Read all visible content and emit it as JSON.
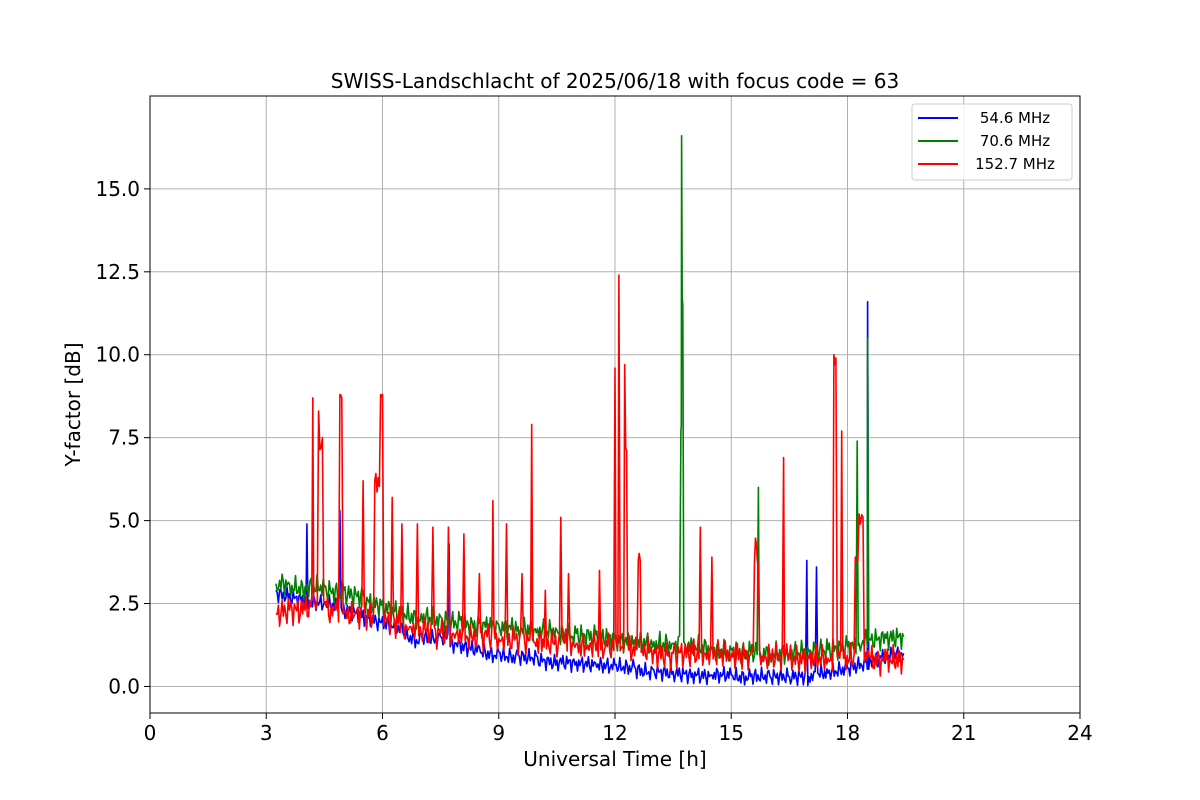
{
  "chart_data": {
    "type": "line",
    "title": "SWISS-Landschlacht of 2025/06/18 with focus code = 63",
    "xlabel": "Universal Time [h]",
    "ylabel": "Y-factor [dB]",
    "xlim": [
      0,
      24
    ],
    "ylim": [
      -0.8,
      17.8
    ],
    "xticks": [
      0,
      3,
      6,
      9,
      12,
      15,
      18,
      21,
      24
    ],
    "xtick_labels": [
      "0",
      "3",
      "6",
      "9",
      "12",
      "15",
      "18",
      "21",
      "24"
    ],
    "yticks": [
      0,
      2.5,
      5,
      7.5,
      10,
      12.5,
      15
    ],
    "ytick_labels": [
      "0.0",
      "2.5",
      "5.0",
      "7.5",
      "10.0",
      "12.5",
      "15.0"
    ],
    "grid": true,
    "legend_position": "top-right",
    "series": [
      {
        "name": "54.6 MHz",
        "color": "#0000ff",
        "x": [
          3.25,
          3.6,
          4.0,
          4.05,
          4.1,
          4.5,
          4.85,
          4.9,
          5.0,
          5.5,
          6.0,
          6.5,
          7.0,
          7.5,
          7.72,
          7.8,
          8.0,
          8.5,
          9.0,
          9.5,
          10.0,
          10.5,
          11.0,
          11.5,
          12.0,
          12.5,
          13.0,
          13.5,
          14.0,
          14.5,
          15.0,
          15.5,
          16.0,
          16.5,
          16.95,
          17.0,
          17.2,
          17.5,
          18.0,
          18.5,
          18.52,
          18.6,
          19.0,
          19.45
        ],
        "y": [
          2.9,
          2.8,
          2.7,
          4.9,
          2.6,
          2.55,
          2.5,
          5.3,
          2.45,
          2.3,
          2.1,
          1.9,
          1.6,
          1.5,
          4.3,
          1.4,
          1.3,
          1.2,
          1.05,
          0.95,
          0.9,
          0.8,
          0.75,
          0.7,
          0.65,
          0.6,
          0.5,
          0.45,
          0.4,
          0.35,
          0.35,
          0.3,
          0.3,
          0.3,
          3.8,
          0.3,
          3.6,
          0.4,
          0.55,
          0.7,
          11.6,
          0.8,
          0.9,
          1.0
        ]
      },
      {
        "name": "70.6 MHz",
        "color": "#008000",
        "x": [
          3.25,
          3.6,
          4.0,
          4.5,
          5.0,
          5.5,
          6.0,
          6.5,
          7.0,
          7.5,
          8.0,
          8.5,
          9.0,
          9.5,
          10.0,
          10.5,
          11.0,
          11.5,
          12.0,
          12.5,
          13.0,
          13.5,
          13.7,
          13.72,
          13.75,
          13.8,
          14.0,
          14.5,
          15.0,
          15.5,
          15.7,
          15.75,
          16.0,
          16.5,
          17.0,
          17.5,
          18.0,
          18.25,
          18.3,
          18.5,
          18.52,
          18.6,
          19.0,
          19.45
        ],
        "y": [
          3.1,
          3.1,
          3.0,
          3.0,
          2.9,
          2.8,
          2.6,
          2.4,
          2.2,
          2.1,
          2.0,
          1.9,
          1.85,
          1.8,
          1.75,
          1.7,
          1.6,
          1.55,
          1.5,
          1.4,
          1.35,
          1.3,
          7.7,
          16.6,
          11.5,
          1.3,
          1.25,
          1.2,
          1.1,
          1.05,
          6.0,
          1.0,
          1.0,
          1.0,
          1.05,
          1.1,
          1.2,
          7.4,
          1.3,
          1.4,
          10.5,
          1.4,
          1.45,
          1.5
        ]
      },
      {
        "name": "152.7 MHz",
        "color": "#ff0000",
        "x": [
          3.25,
          3.6,
          4.0,
          4.15,
          4.2,
          4.25,
          4.35,
          4.45,
          4.55,
          4.8,
          4.9,
          4.95,
          5.05,
          5.3,
          5.5,
          5.65,
          5.8,
          5.95,
          6.0,
          6.1,
          6.25,
          6.4,
          6.5,
          6.7,
          6.9,
          7.1,
          7.3,
          7.5,
          7.7,
          7.9,
          8.1,
          8.3,
          8.5,
          8.7,
          8.85,
          8.9,
          9.0,
          9.2,
          9.4,
          9.6,
          9.8,
          9.85,
          9.9,
          10.2,
          10.4,
          10.6,
          10.7,
          10.8,
          11.0,
          11.3,
          11.6,
          11.75,
          11.8,
          12.0,
          12.05,
          12.1,
          12.2,
          12.25,
          12.3,
          12.35,
          12.6,
          12.65,
          12.7,
          13.0,
          13.5,
          14.0,
          14.2,
          14.3,
          14.5,
          15.0,
          15.5,
          15.6,
          15.65,
          15.7,
          15.8,
          16.0,
          16.35,
          16.4,
          16.5,
          17.0,
          17.5,
          17.65,
          17.7,
          17.8,
          17.85,
          17.9,
          18.2,
          18.3,
          18.4,
          18.5,
          18.6,
          19.0,
          19.45
        ],
        "y": [
          2.2,
          2.3,
          2.3,
          2.4,
          8.7,
          2.5,
          8.3,
          7.5,
          2.4,
          2.3,
          8.8,
          8.7,
          2.3,
          2.2,
          6.2,
          2.1,
          6.2,
          8.8,
          8.8,
          2.0,
          5.7,
          1.9,
          4.9,
          1.8,
          4.9,
          1.7,
          4.8,
          1.6,
          4.8,
          1.6,
          4.6,
          1.5,
          3.4,
          1.5,
          5.6,
          1.5,
          1.45,
          4.9,
          1.4,
          3.4,
          1.4,
          7.9,
          1.35,
          2.9,
          1.3,
          5.1,
          1.3,
          3.4,
          1.3,
          1.25,
          3.5,
          1.2,
          1.2,
          9.6,
          1.2,
          12.4,
          1.2,
          9.7,
          7.1,
          1.1,
          3.8,
          3.8,
          1.1,
          1.1,
          1.0,
          1.0,
          4.8,
          1.0,
          3.9,
          1.0,
          0.95,
          3.8,
          4.3,
          3.7,
          0.9,
          0.9,
          6.9,
          0.9,
          0.9,
          0.85,
          0.85,
          10.0,
          9.9,
          0.85,
          7.7,
          0.85,
          3.9,
          5.2,
          5.1,
          0.8,
          0.85,
          0.8,
          0.8
        ]
      }
    ]
  }
}
